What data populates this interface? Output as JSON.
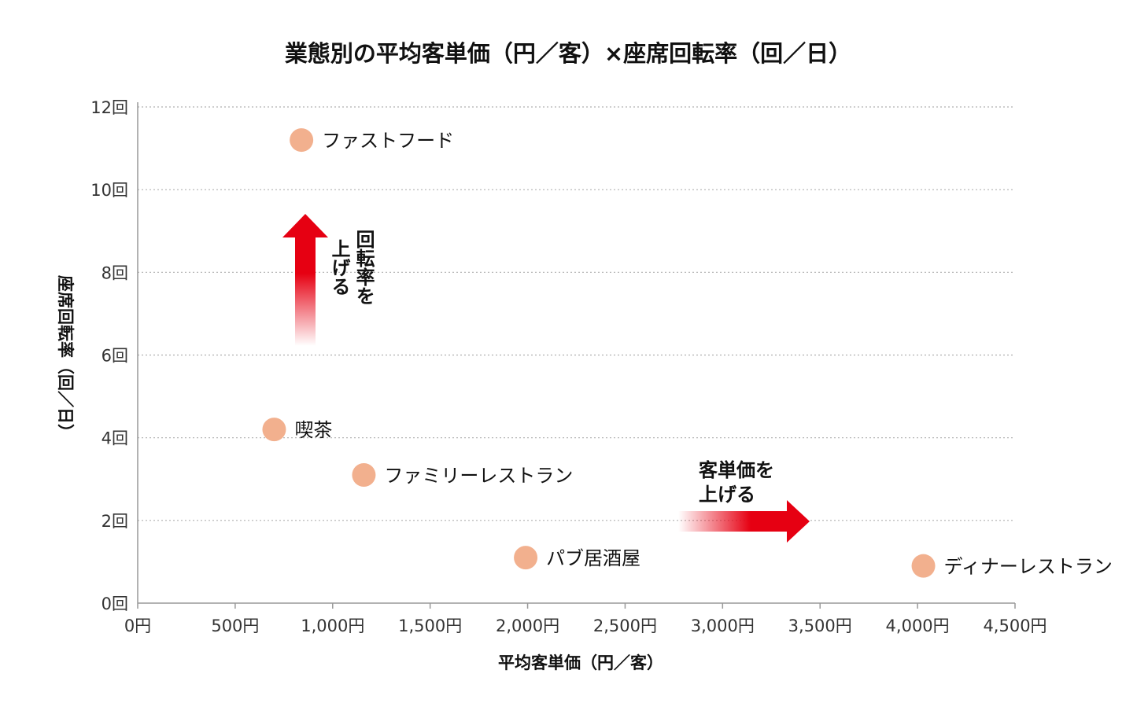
{
  "chart_data": {
    "type": "scatter",
    "title": "業態別の平均客単価（円／客）×座席回転率（回／日）",
    "xlabel": "平均客単価（円／客）",
    "ylabel": "座席回転率（回／日）",
    "xlim": [
      0,
      4500
    ],
    "ylim": [
      0,
      12
    ],
    "x_ticks": [
      {
        "value": 0,
        "label": "0円"
      },
      {
        "value": 500,
        "label": "500円"
      },
      {
        "value": 1000,
        "label": "1,000円"
      },
      {
        "value": 1500,
        "label": "1,500円"
      },
      {
        "value": 2000,
        "label": "2,000円"
      },
      {
        "value": 2500,
        "label": "2,500円"
      },
      {
        "value": 3000,
        "label": "3,000円"
      },
      {
        "value": 3500,
        "label": "3,500円"
      },
      {
        "value": 4000,
        "label": "4,000円"
      },
      {
        "value": 4500,
        "label": "4,500円"
      }
    ],
    "y_ticks": [
      {
        "value": 0,
        "label": "0回"
      },
      {
        "value": 2,
        "label": "2回"
      },
      {
        "value": 4,
        "label": "4回"
      },
      {
        "value": 6,
        "label": "6回"
      },
      {
        "value": 8,
        "label": "8回"
      },
      {
        "value": 10,
        "label": "10回"
      },
      {
        "value": 12,
        "label": "12回"
      }
    ],
    "grid": "horizontal-dotted",
    "points": [
      {
        "label": "ファストフード",
        "x": 840,
        "y": 11.2
      },
      {
        "label": "喫茶",
        "x": 700,
        "y": 4.2
      },
      {
        "label": "ファミリーレストラン",
        "x": 1160,
        "y": 3.1
      },
      {
        "label": "パブ居酒屋",
        "x": 1990,
        "y": 1.1
      },
      {
        "label": "ディナーレストラン",
        "x": 4030,
        "y": 0.9
      }
    ],
    "annotations": [
      {
        "text_lines": [
          "回転率を",
          "上げる"
        ],
        "direction": "up"
      },
      {
        "text_lines": [
          "客単価を",
          "上げる"
        ],
        "direction": "right"
      }
    ]
  },
  "colors": {
    "point": "#f2b08e",
    "arrow": "#e60012",
    "grid": "#b0b0b0",
    "axis": "#999999"
  }
}
